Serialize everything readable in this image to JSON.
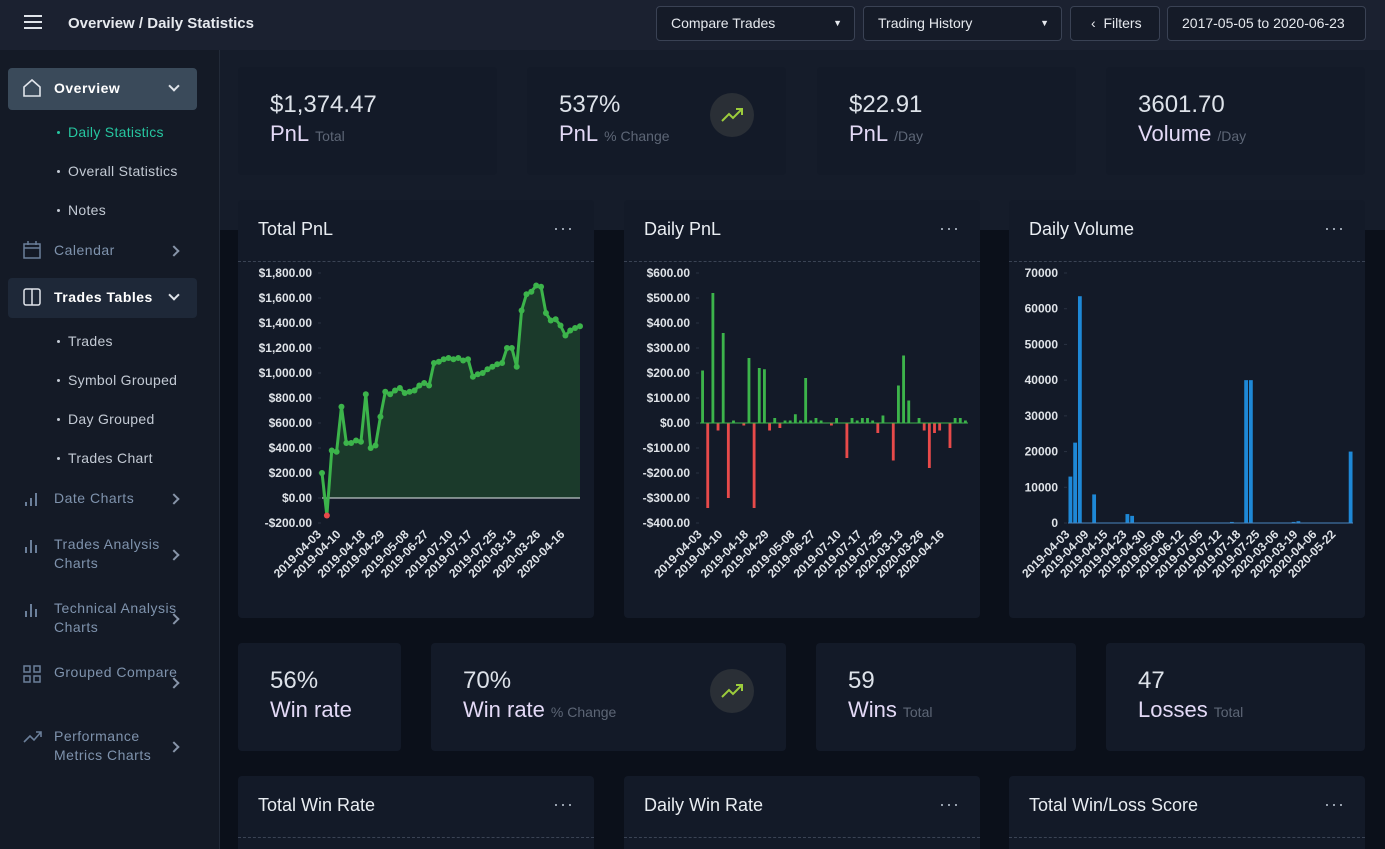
{
  "header": {
    "breadcrumb": [
      "Overview",
      "Daily Statistics"
    ],
    "buttons": [
      "Compare Trades",
      "Trading History",
      "Filters",
      "2017-05-05 to 2020-06-23"
    ]
  },
  "sidebar": [
    {
      "label": "Overview",
      "children": [
        "Daily Statistics",
        "Overall Statistics",
        "Notes"
      ]
    },
    {
      "label": "Calendar"
    },
    {
      "label": "Trades Tables",
      "children": [
        "Trades",
        "Symbol Grouped",
        "Day Grouped",
        "Trades Chart"
      ]
    },
    {
      "label": "Date Charts"
    },
    {
      "label": "Trades Analysis Charts"
    },
    {
      "label": "Technical Analysis Charts"
    },
    {
      "label": "Grouped Compare"
    },
    {
      "label": "Performance Metrics Charts"
    }
  ],
  "stats_top": [
    {
      "value": "$1,374.47",
      "label": "PnL",
      "sub": "Total"
    },
    {
      "value": "537%",
      "label": "PnL",
      "sub": "% Change"
    },
    {
      "value": "$22.91",
      "label": "PnL",
      "sub": "/Day"
    },
    {
      "value": "3601.70",
      "label": "Volume",
      "sub": "/Day"
    }
  ],
  "stats_bottom": [
    {
      "value": "56%",
      "label": "Win rate"
    },
    {
      "value": "70%",
      "label": "Win rate",
      "sub": "% Change"
    },
    {
      "value": "59",
      "label": "Wins",
      "sub": "Total"
    },
    {
      "value": "47",
      "label": "Losses",
      "sub": "Total"
    }
  ],
  "chart_data": [
    {
      "type": "line",
      "title": "Total PnL",
      "color": "#3cb44b",
      "area_color": "#1b3a2b",
      "negative_color": "#e84a4a",
      "categories": [
        "2019-04-03",
        null,
        null,
        null,
        "2019-04-10",
        null,
        null,
        null,
        null,
        "2019-04-18",
        null,
        null,
        null,
        "2019-04-29",
        null,
        null,
        null,
        null,
        "2019-05-08",
        null,
        null,
        null,
        "2019-06-27",
        null,
        null,
        null,
        null,
        "2019-07-10",
        null,
        null,
        null,
        "2019-07-17",
        null,
        null,
        null,
        null,
        "2019-07-25",
        null,
        null,
        null,
        "2020-03-13",
        null,
        null,
        null,
        null,
        "2020-03-26",
        null,
        null,
        null,
        null,
        "2020-04-16",
        null,
        null,
        null
      ],
      "values": [
        200,
        -140,
        380,
        370,
        730,
        440,
        440,
        460,
        450,
        830,
        400,
        420,
        650,
        850,
        830,
        860,
        880,
        840,
        850,
        860,
        900,
        920,
        900,
        1080,
        1090,
        1110,
        1120,
        1110,
        1120,
        1100,
        1110,
        970,
        990,
        1000,
        1030,
        1050,
        1070,
        1080,
        1200,
        1200,
        1050,
        1500,
        1630,
        1650,
        1700,
        1690,
        1480,
        1420,
        1430,
        1380,
        1300,
        1340,
        1360,
        1374
      ],
      "ylim": [
        -200,
        1800
      ],
      "yticks": [
        {
          "value": 1800,
          "label": "$1,800.00"
        },
        {
          "value": 1600,
          "label": "$1,600.00"
        },
        {
          "value": 1400,
          "label": "$1,400.00"
        },
        {
          "value": 1200,
          "label": "$1,200.00"
        },
        {
          "value": 1000,
          "label": "$1,000.00"
        },
        {
          "value": 800,
          "label": "$800.00"
        },
        {
          "value": 600,
          "label": "$600.00"
        },
        {
          "value": 400,
          "label": "$400.00"
        },
        {
          "value": 200,
          "label": "$200.00"
        },
        {
          "value": 0,
          "label": "$0.00"
        },
        {
          "value": -200,
          "label": "-$200.00"
        }
      ],
      "grid": false
    },
    {
      "type": "bar",
      "title": "Daily PnL",
      "positive_color": "#3cb44b",
      "negative_color": "#e84a4a",
      "categories": [
        "2019-04-03",
        null,
        null,
        null,
        "2019-04-10",
        null,
        null,
        null,
        null,
        "2019-04-18",
        null,
        null,
        null,
        "2019-04-29",
        null,
        null,
        null,
        null,
        "2019-05-08",
        null,
        null,
        null,
        "2019-06-27",
        null,
        null,
        null,
        null,
        "2019-07-10",
        null,
        null,
        null,
        "2019-07-17",
        null,
        null,
        null,
        "2019-07-25",
        null,
        null,
        null,
        "2020-03-13",
        null,
        null,
        null,
        "2020-03-26",
        null,
        null,
        null,
        "2020-04-16",
        null,
        null,
        null,
        null
      ],
      "values": [
        210,
        -340,
        520,
        -30,
        360,
        -300,
        10,
        0,
        -10,
        260,
        -340,
        220,
        215,
        -30,
        20,
        -20,
        10,
        10,
        35,
        10,
        180,
        10,
        20,
        10,
        0,
        -10,
        20,
        0,
        -140,
        20,
        10,
        20,
        20,
        10,
        -40,
        30,
        0,
        -150,
        150,
        270,
        90,
        0,
        20,
        -30,
        -180,
        -40,
        -30,
        0,
        -100,
        20,
        20,
        10
      ],
      "ylim": [
        -400,
        600
      ],
      "yticks": [
        {
          "value": 600,
          "label": "$600.00"
        },
        {
          "value": 500,
          "label": "$500.00"
        },
        {
          "value": 400,
          "label": "$400.00"
        },
        {
          "value": 300,
          "label": "$300.00"
        },
        {
          "value": 200,
          "label": "$200.00"
        },
        {
          "value": 100,
          "label": "$100.00"
        },
        {
          "value": 0,
          "label": "$0.00"
        },
        {
          "value": -100,
          "label": "-$100.00"
        },
        {
          "value": -200,
          "label": "-$200.00"
        },
        {
          "value": -300,
          "label": "-$300.00"
        },
        {
          "value": -400,
          "label": "-$400.00"
        }
      ],
      "grid": false
    },
    {
      "type": "bar",
      "title": "Daily Volume",
      "color": "#1e88d6",
      "categories": [
        "2019-04-03",
        null,
        null,
        null,
        "2019-04-09",
        null,
        null,
        null,
        "2019-04-15",
        null,
        null,
        null,
        "2019-04-23",
        null,
        null,
        null,
        "2019-04-30",
        null,
        null,
        null,
        "2019-05-08",
        null,
        null,
        null,
        "2019-06-12",
        null,
        null,
        null,
        "2019-07-05",
        null,
        null,
        null,
        "2019-07-12",
        null,
        null,
        null,
        "2019-07-18",
        null,
        null,
        null,
        "2019-07-25",
        null,
        null,
        null,
        "2020-03-06",
        null,
        null,
        null,
        "2020-03-19",
        null,
        null,
        null,
        "2020-04-06",
        null,
        null,
        null,
        "2020-05-22",
        null,
        null,
        null
      ],
      "values": [
        13000,
        22500,
        63500,
        0,
        0,
        8000,
        0,
        0,
        0,
        0,
        0,
        0,
        2500,
        2000,
        0,
        0,
        0,
        0,
        0,
        0,
        0,
        0,
        0,
        0,
        0,
        0,
        0,
        0,
        0,
        0,
        0,
        0,
        0,
        0,
        300,
        0,
        0,
        40000,
        40000,
        0,
        0,
        0,
        0,
        0,
        0,
        0,
        0,
        300,
        500,
        0,
        0,
        0,
        0,
        0,
        0,
        0,
        0,
        0,
        0,
        20000
      ],
      "ylim": [
        0,
        70000
      ],
      "yticks": [
        70000,
        60000,
        50000,
        40000,
        30000,
        20000,
        10000,
        0
      ],
      "grid": false
    }
  ],
  "more_cards": [
    "Total Win Rate",
    "Daily Win Rate",
    "Total Win/Loss Score"
  ]
}
